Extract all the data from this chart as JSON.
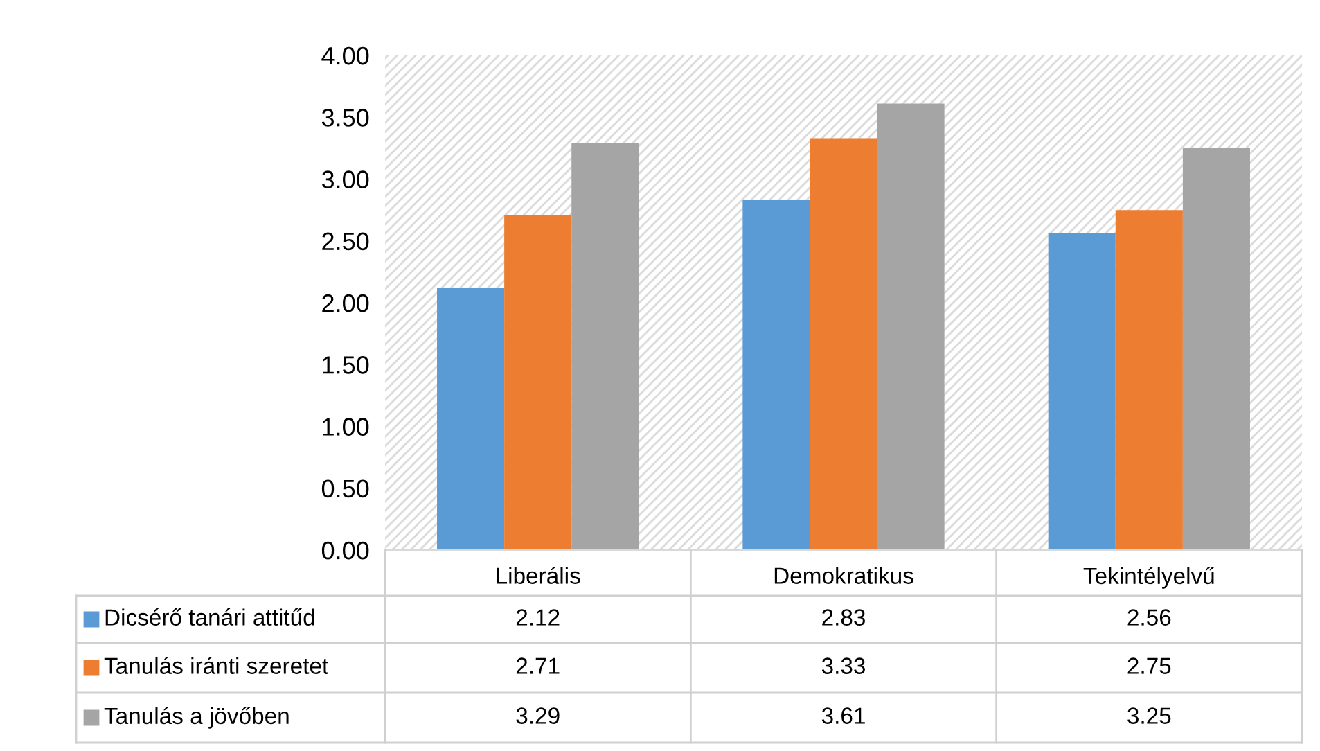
{
  "chart_data": {
    "type": "bar",
    "categories": [
      "Liberális",
      "Demokratikus",
      "Tekintélyelvű"
    ],
    "series": [
      {
        "name": "Dicsérő tanári attitűd",
        "color": "#5b9bd5",
        "values": [
          2.12,
          2.83,
          2.56
        ]
      },
      {
        "name": "Tanulás iránti szeretet",
        "color": "#ed7d31",
        "values": [
          2.71,
          3.33,
          2.75
        ]
      },
      {
        "name": "Tanulás a jövőben",
        "color": "#a5a5a5",
        "values": [
          3.29,
          3.61,
          3.25
        ]
      }
    ],
    "ylim": [
      0,
      4
    ],
    "yticks": [
      {
        "value": 0,
        "label": "0.00"
      },
      {
        "value": 0.5,
        "label": "0.50"
      },
      {
        "value": 1,
        "label": "1.00"
      },
      {
        "value": 1.5,
        "label": "1.50"
      },
      {
        "value": 2,
        "label": "2.00"
      },
      {
        "value": 2.5,
        "label": "2.50"
      },
      {
        "value": 3,
        "label": "3.00"
      },
      {
        "value": 3.5,
        "label": "3.50"
      },
      {
        "value": 4,
        "label": "4.00"
      }
    ],
    "data_labels": true,
    "legend": "bottom left",
    "grid": false
  }
}
